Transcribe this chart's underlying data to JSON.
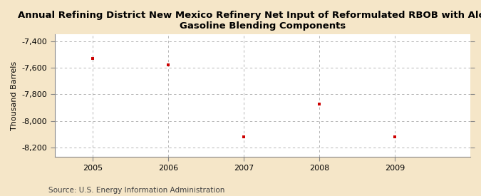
{
  "title": "Annual Refining District New Mexico Refinery Net Input of Reformulated RBOB with Alcohol\nGasoline Blending Components",
  "ylabel": "Thousand Barrels",
  "source": "Source: U.S. Energy Information Administration",
  "x": [
    2005,
    2006,
    2007,
    2008,
    2009
  ],
  "y": [
    -7530,
    -7580,
    -8120,
    -7870,
    -8120
  ],
  "ylim": [
    -8270,
    -7350
  ],
  "yticks": [
    -8200,
    -8000,
    -7800,
    -7600,
    -7400
  ],
  "xlim": [
    2004.5,
    2010.0
  ],
  "xticks": [
    2005,
    2006,
    2007,
    2008,
    2009
  ],
  "marker_color": "#cc0000",
  "marker": "s",
  "marker_size": 3.5,
  "bg_color": "#f5e6c8",
  "plot_bg_color": "#ffffff",
  "grid_color": "#aaaaaa",
  "title_fontsize": 9.5,
  "tick_fontsize": 8,
  "ylabel_fontsize": 8,
  "source_fontsize": 7.5
}
